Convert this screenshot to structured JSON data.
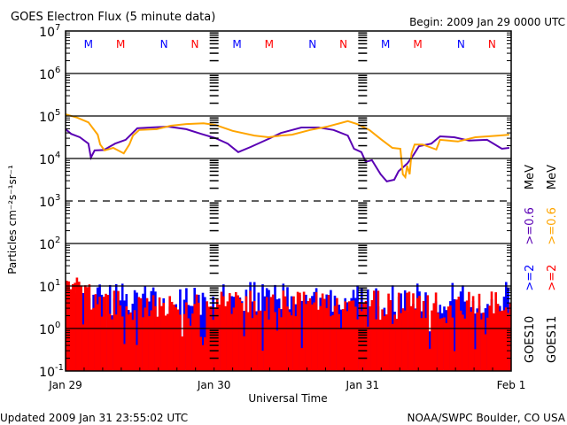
{
  "chart_data": {
    "type": "line",
    "title": "GOES Electron Flux (5 minute data)",
    "begin_label": "Begin: 2009 Jan 29 0000 UTC",
    "xlabel": "Universal Time",
    "ylabel": "Particles cm⁻²s⁻¹sr⁻¹",
    "x_unit": "hours since 2009 Jan 29 0000 UTC",
    "xlim": [
      0,
      72
    ],
    "x_ticks": [
      {
        "hour": 0,
        "label": "Jan 29"
      },
      {
        "hour": 24,
        "label": "Jan 30"
      },
      {
        "hour": 48,
        "label": "Jan 31"
      },
      {
        "hour": 72,
        "label": "Feb 1"
      }
    ],
    "y_scale": "log",
    "ylim_log10": [
      -1,
      7
    ],
    "y_ticks": [
      {
        "base": "10",
        "exp": "7"
      },
      {
        "base": "10",
        "exp": "6"
      },
      {
        "base": "10",
        "exp": "5"
      },
      {
        "base": "10",
        "exp": "4"
      },
      {
        "base": "10",
        "exp": "3"
      },
      {
        "base": "10",
        "exp": "2"
      },
      {
        "base": "10",
        "exp": "1"
      },
      {
        "base": "10",
        "exp": "0"
      },
      {
        "base": "10",
        "exp": "-1"
      }
    ],
    "dashed_gridline_log10": 3,
    "solid_gridlines_log10": [
      6,
      5,
      4,
      2,
      1,
      0
    ],
    "markers": [
      {
        "hour": 3.7,
        "label": "M",
        "color": "#0000ff"
      },
      {
        "hour": 8.9,
        "label": "M",
        "color": "#ff0000"
      },
      {
        "hour": 15.9,
        "label": "N",
        "color": "#0000ff"
      },
      {
        "hour": 20.9,
        "label": "N",
        "color": "#ff0000"
      },
      {
        "hour": 27.7,
        "label": "M",
        "color": "#0000ff"
      },
      {
        "hour": 32.9,
        "label": "M",
        "color": "#ff0000"
      },
      {
        "hour": 39.9,
        "label": "N",
        "color": "#0000ff"
      },
      {
        "hour": 44.9,
        "label": "N",
        "color": "#ff0000"
      },
      {
        "hour": 51.7,
        "label": "M",
        "color": "#0000ff"
      },
      {
        "hour": 56.9,
        "label": "M",
        "color": "#ff0000"
      },
      {
        "hour": 63.9,
        "label": "N",
        "color": "#0000ff"
      },
      {
        "hour": 68.9,
        "label": "N",
        "color": "#ff0000"
      }
    ],
    "series": [
      {
        "name": "GOES10 >=0.6 MeV",
        "satellite": "GOES10",
        "energy": ">=0.6",
        "color": "#5a00b4",
        "style": "line",
        "points_hour_log10": [
          [
            0,
            4.69
          ],
          [
            0.9,
            4.58
          ],
          [
            2.3,
            4.5
          ],
          [
            3.7,
            4.35
          ],
          [
            4.1,
            4.02
          ],
          [
            4.7,
            4.19
          ],
          [
            6.2,
            4.2
          ],
          [
            8,
            4.35
          ],
          [
            9.7,
            4.44
          ],
          [
            11.6,
            4.71
          ],
          [
            13.7,
            4.73
          ],
          [
            16.6,
            4.75
          ],
          [
            19.5,
            4.69
          ],
          [
            21.9,
            4.58
          ],
          [
            24.2,
            4.48
          ],
          [
            26.2,
            4.35
          ],
          [
            27.9,
            4.15
          ],
          [
            29.9,
            4.27
          ],
          [
            32.8,
            4.46
          ],
          [
            34.8,
            4.6
          ],
          [
            36.6,
            4.67
          ],
          [
            38.1,
            4.73
          ],
          [
            40.9,
            4.73
          ],
          [
            43.3,
            4.67
          ],
          [
            45.6,
            4.54
          ],
          [
            46.6,
            4.23
          ],
          [
            47.8,
            4.15
          ],
          [
            48.5,
            3.92
          ],
          [
            49.5,
            3.96
          ],
          [
            50.9,
            3.63
          ],
          [
            51.9,
            3.46
          ],
          [
            53.1,
            3.5
          ],
          [
            53.8,
            3.7
          ],
          [
            55.2,
            3.88
          ],
          [
            56.2,
            4.08
          ],
          [
            57.1,
            4.29
          ],
          [
            59.1,
            4.35
          ],
          [
            60.5,
            4.52
          ],
          [
            62.8,
            4.5
          ],
          [
            65.2,
            4.42
          ],
          [
            68.1,
            4.44
          ],
          [
            70.5,
            4.23
          ],
          [
            71.7,
            4.25
          ]
        ]
      },
      {
        "name": "GOES11 >=0.6 MeV",
        "satellite": "GOES11",
        "energy": ">=0.6",
        "color": "#ffa500",
        "style": "line",
        "points_hour_log10": [
          [
            0,
            5.04
          ],
          [
            1.9,
            4.96
          ],
          [
            3.7,
            4.85
          ],
          [
            5.2,
            4.56
          ],
          [
            5.6,
            4.33
          ],
          [
            6.3,
            4.19
          ],
          [
            7.7,
            4.25
          ],
          [
            9.4,
            4.12
          ],
          [
            10.3,
            4.33
          ],
          [
            10.9,
            4.54
          ],
          [
            11.9,
            4.67
          ],
          [
            14.7,
            4.69
          ],
          [
            17,
            4.77
          ],
          [
            19.5,
            4.81
          ],
          [
            22.3,
            4.83
          ],
          [
            24.2,
            4.79
          ],
          [
            27,
            4.65
          ],
          [
            30.5,
            4.54
          ],
          [
            32.8,
            4.5
          ],
          [
            34.8,
            4.54
          ],
          [
            36.6,
            4.56
          ],
          [
            39.5,
            4.67
          ],
          [
            42.3,
            4.75
          ],
          [
            45.6,
            4.88
          ],
          [
            47.1,
            4.81
          ],
          [
            49.1,
            4.67
          ],
          [
            50.9,
            4.46
          ],
          [
            52.8,
            4.25
          ],
          [
            54.1,
            4.23
          ],
          [
            54.5,
            3.63
          ],
          [
            54.9,
            3.56
          ],
          [
            55.2,
            3.83
          ],
          [
            55.6,
            3.63
          ],
          [
            55.9,
            4.12
          ],
          [
            56.4,
            4.33
          ],
          [
            57.7,
            4.33
          ],
          [
            59.9,
            4.21
          ],
          [
            60.5,
            4.44
          ],
          [
            63.4,
            4.4
          ],
          [
            66.2,
            4.5
          ],
          [
            70,
            4.54
          ],
          [
            71.7,
            4.56
          ]
        ]
      },
      {
        "name": "GOES10 >=2 MeV",
        "satellite": "GOES10",
        "energy": ">=2",
        "color": "#0000ff",
        "style": "noisy-bars",
        "typical_log10_range": [
          0.3,
          1.1
        ],
        "floor_log10": -1
      },
      {
        "name": "GOES11 >=2 MeV",
        "satellite": "GOES11",
        "energy": ">=2",
        "color": "#ff0000",
        "style": "noisy-bars",
        "typical_log10_range": [
          0.2,
          0.9
        ],
        "early_log10_range": [
          0.9,
          1.25
        ],
        "floor_log10": -1
      }
    ],
    "legend": {
      "placement": "right",
      "columns": [
        {
          "sat": "GOES10",
          "e2": ">=2",
          "e06": ">=0.6",
          "unit": "MeV",
          "c2": "#0000ff",
          "c06": "#5a00b4"
        },
        {
          "sat": "GOES11",
          "e2": ">=2",
          "e06": ">=0.6",
          "unit": "MeV",
          "c2": "#ff0000",
          "c06": "#ffa500"
        }
      ]
    }
  },
  "footer": {
    "updated": "Updated 2009 Jan 31 23:55:02 UTC",
    "credit": "NOAA/SWPC Boulder, CO USA"
  }
}
